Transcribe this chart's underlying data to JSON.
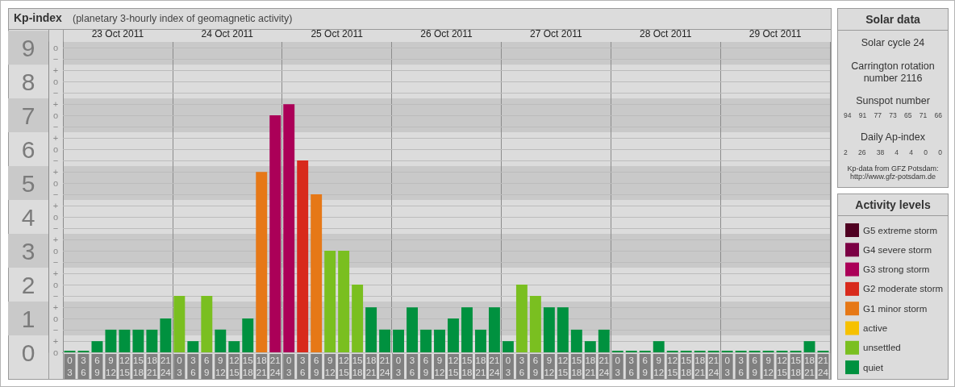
{
  "chart_data": [
    {
      "type": "bar",
      "title": "Kp-index",
      "subtitle": "(planetary 3-hourly index of geomagnetic activity)",
      "legend_title": "Activity levels",
      "categories": [
        "0\n3",
        "3\n6",
        "6\n9",
        "9\n12",
        "12\n15",
        "15\n18",
        "18\n21",
        "21\n24",
        "0\n3",
        "3\n6",
        "6\n9",
        "9\n12",
        "12\n15",
        "15\n18",
        "18\n21",
        "21\n24",
        "0\n3",
        "3\n6",
        "6\n9",
        "9\n12",
        "12\n15",
        "15\n18",
        "18\n21",
        "21\n24",
        "0\n3",
        "3\n6",
        "6\n9",
        "9\n12",
        "12\n15",
        "15\n18",
        "18\n21",
        "21\n24",
        "0\n3",
        "3\n6",
        "6\n9",
        "9\n12",
        "12\n15",
        "15\n18",
        "18\n21",
        "21\n24",
        "0\n3",
        "3\n6",
        "6\n9",
        "9\n12",
        "12\n15",
        "15\n18",
        "18\n21",
        "21\n24",
        "0\n3",
        "3\n6",
        "6\n9",
        "9\n12",
        "12\n15",
        "15\n18",
        "18\n21",
        "21\n24"
      ],
      "series": [
        {
          "name": "G5 extreme storm",
          "color": "#4f0021",
          "values": [
            null,
            null,
            null,
            null,
            null,
            null,
            null,
            null,
            null,
            null,
            null,
            null,
            null,
            null,
            null,
            null,
            null,
            null,
            null,
            null,
            null,
            null,
            null,
            null,
            null,
            null,
            null,
            null,
            null,
            null,
            null,
            null,
            null,
            null,
            null,
            null,
            null,
            null,
            null,
            null,
            null,
            null,
            null,
            null,
            null,
            null,
            null,
            null,
            null,
            null,
            null,
            null,
            null,
            null,
            null,
            null
          ]
        },
        {
          "name": "G4 severe storm",
          "color": "#7b0044",
          "values": [
            null,
            null,
            null,
            null,
            null,
            null,
            null,
            null,
            null,
            null,
            null,
            null,
            null,
            null,
            null,
            null,
            null,
            null,
            null,
            null,
            null,
            null,
            null,
            null,
            null,
            null,
            null,
            null,
            null,
            null,
            null,
            null,
            null,
            null,
            null,
            null,
            null,
            null,
            null,
            null,
            null,
            null,
            null,
            null,
            null,
            null,
            null,
            null,
            null,
            null,
            null,
            null,
            null,
            null,
            null,
            null
          ]
        },
        {
          "name": "G3 strong storm",
          "color": "#ab0058",
          "values": [
            null,
            null,
            null,
            null,
            null,
            null,
            null,
            null,
            null,
            null,
            null,
            null,
            null,
            null,
            null,
            7,
            7.33,
            null,
            null,
            null,
            null,
            null,
            null,
            null,
            null,
            null,
            null,
            null,
            null,
            null,
            null,
            null,
            null,
            null,
            null,
            null,
            null,
            null,
            null,
            null,
            null,
            null,
            null,
            null,
            null,
            null,
            null,
            null,
            null,
            null,
            null,
            null,
            null,
            null,
            null,
            null
          ]
        },
        {
          "name": "G2 moderate storm",
          "color": "#d82a1c",
          "values": [
            null,
            null,
            null,
            null,
            null,
            null,
            null,
            null,
            null,
            null,
            null,
            null,
            null,
            null,
            null,
            null,
            null,
            5.67,
            null,
            null,
            null,
            null,
            null,
            null,
            null,
            null,
            null,
            null,
            null,
            null,
            null,
            null,
            null,
            null,
            null,
            null,
            null,
            null,
            null,
            null,
            null,
            null,
            null,
            null,
            null,
            null,
            null,
            null,
            null,
            null,
            null,
            null,
            null,
            null,
            null,
            null
          ]
        },
        {
          "name": "G1 minor storm",
          "color": "#e67817",
          "values": [
            null,
            null,
            null,
            null,
            null,
            null,
            null,
            null,
            null,
            null,
            null,
            null,
            null,
            null,
            5.33,
            null,
            null,
            null,
            4.67,
            null,
            null,
            null,
            null,
            null,
            null,
            null,
            null,
            null,
            null,
            null,
            null,
            null,
            null,
            null,
            null,
            null,
            null,
            null,
            null,
            null,
            null,
            null,
            null,
            null,
            null,
            null,
            null,
            null,
            null,
            null,
            null,
            null,
            null,
            null,
            null,
            null
          ]
        },
        {
          "name": "active",
          "color": "#f6c100",
          "values": [
            null,
            null,
            null,
            null,
            null,
            null,
            null,
            null,
            null,
            null,
            null,
            null,
            null,
            null,
            null,
            null,
            null,
            null,
            null,
            null,
            null,
            null,
            null,
            null,
            null,
            null,
            null,
            null,
            null,
            null,
            null,
            null,
            null,
            null,
            null,
            null,
            null,
            null,
            null,
            null,
            null,
            null,
            null,
            null,
            null,
            null,
            null,
            null,
            null,
            null,
            null,
            null,
            null,
            null,
            null,
            null
          ]
        },
        {
          "name": "unsettled",
          "color": "#7abf20",
          "values": [
            null,
            null,
            null,
            null,
            null,
            null,
            null,
            null,
            1.67,
            null,
            1.67,
            null,
            null,
            null,
            null,
            null,
            null,
            null,
            null,
            3,
            3,
            2,
            null,
            null,
            null,
            null,
            null,
            null,
            null,
            null,
            null,
            null,
            null,
            2,
            1.67,
            null,
            null,
            null,
            null,
            null,
            null,
            null,
            null,
            null,
            null,
            null,
            null,
            null,
            null,
            null,
            null,
            null,
            null,
            null,
            null,
            null
          ]
        },
        {
          "name": "quiet",
          "color": "#00913f",
          "values": [
            0,
            0,
            0.33,
            0.67,
            0.67,
            0.67,
            0.67,
            1,
            null,
            0.33,
            null,
            0.67,
            0.33,
            1,
            null,
            null,
            null,
            null,
            null,
            null,
            null,
            null,
            1.33,
            0.67,
            0.67,
            1.33,
            0.67,
            0.67,
            1,
            1.33,
            0.67,
            1.33,
            0.33,
            null,
            null,
            1.33,
            1.33,
            0.67,
            0.33,
            0.67,
            0,
            0,
            0,
            0.33,
            0,
            0,
            0,
            0,
            0,
            0,
            0,
            0,
            0,
            0,
            0.33,
            0
          ]
        }
      ],
      "stacked": true,
      "ylim": [
        0,
        9.17
      ],
      "yticks": [
        0,
        {
          "value": 0.33,
          "label": null
        },
        {
          "value": 0.67,
          "label": null
        },
        1,
        {
          "value": 1.33,
          "label": null
        },
        {
          "value": 1.67,
          "label": null
        },
        2,
        {
          "value": 2.33,
          "label": null
        },
        {
          "value": 2.67,
          "label": null
        },
        3,
        {
          "value": 3.33,
          "label": null
        },
        {
          "value": 3.67,
          "label": null
        },
        4,
        {
          "value": 4.33,
          "label": null
        },
        {
          "value": 4.67,
          "label": null
        },
        5,
        {
          "value": 5.33,
          "label": null
        },
        {
          "value": 5.67,
          "label": null
        },
        6,
        {
          "value": 6.33,
          "label": null
        },
        {
          "value": 6.67,
          "label": null
        },
        7,
        {
          "value": 7.33,
          "label": null
        },
        {
          "value": 7.67,
          "label": null
        },
        8,
        {
          "value": 8.33,
          "label": null
        },
        {
          "value": 8.67,
          "label": null
        },
        9
      ],
      "annotations": [
        "o",
        "+",
        "−",
        "o",
        "+",
        "−",
        "o",
        "+",
        "−",
        "o",
        "+",
        "−",
        "o",
        "+",
        "−",
        "o",
        "+",
        "−",
        "o",
        "+",
        "−",
        "o",
        "+",
        "−",
        "o",
        "+",
        "−",
        "o"
      ],
      "x2lim": [
        "2011-10-23T00:00",
        "2011-10-30T00:00"
      ],
      "x2ticks": [
        {
          "value": "2011-10-23T00:00",
          "label": null
        },
        {
          "value": "2011-10-23T12:00",
          "label": "23 Oct 2011"
        },
        {
          "value": "2011-10-24T00:00",
          "label": null
        },
        {
          "value": "2011-10-24T12:00",
          "label": "24 Oct 2011"
        },
        {
          "value": "2011-10-25T00:00",
          "label": null
        },
        {
          "value": "2011-10-25T12:00",
          "label": "25 Oct 2011"
        },
        {
          "value": "2011-10-26T00:00",
          "label": null
        },
        {
          "value": "2011-10-26T12:00",
          "label": "26 Oct 2011"
        },
        {
          "value": "2011-10-27T00:00",
          "label": null
        },
        {
          "value": "2011-10-27T12:00",
          "label": "27 Oct 2011"
        },
        {
          "value": "2011-10-28T00:00",
          "label": null
        },
        {
          "value": "2011-10-28T12:00",
          "label": "28 Oct 2011"
        },
        {
          "value": "2011-10-29T00:00",
          "label": null
        },
        {
          "value": "2011-10-29T12:00",
          "label": "29 Oct 2011"
        },
        {
          "value": "2011-10-30T00:00",
          "label": null
        }
      ],
      "bands": [
        {
          "axis": "y",
          "from": 0.5,
          "to": 1.5,
          "color": "#c9c9c9"
        },
        {
          "axis": "y",
          "from": 2.5,
          "to": 3.5,
          "color": "#c9c9c9"
        },
        {
          "axis": "y",
          "from": 4.5,
          "to": 5.5,
          "color": "#c9c9c9"
        },
        {
          "axis": "y",
          "from": 6.5,
          "to": 7.5,
          "color": "#c9c9c9"
        },
        {
          "axis": "y",
          "from": 8.5,
          "to": 9.17,
          "color": "#c9c9c9"
        }
      ],
      "grid": true,
      "legend": "right"
    },
    {
      "type": "other",
      "title": "Solar data",
      "annotations": [
        "Solar cycle 24",
        "Carrington rotation number 2116",
        "Sunspot number",
        "94 91 77 73 65 71 66",
        "Daily Ap-index",
        "2 26 38 4 4 0 0",
        "Kp-data from GFZ Potsdam: http://www.gfz-potsdam.de"
      ]
    }
  ]
}
